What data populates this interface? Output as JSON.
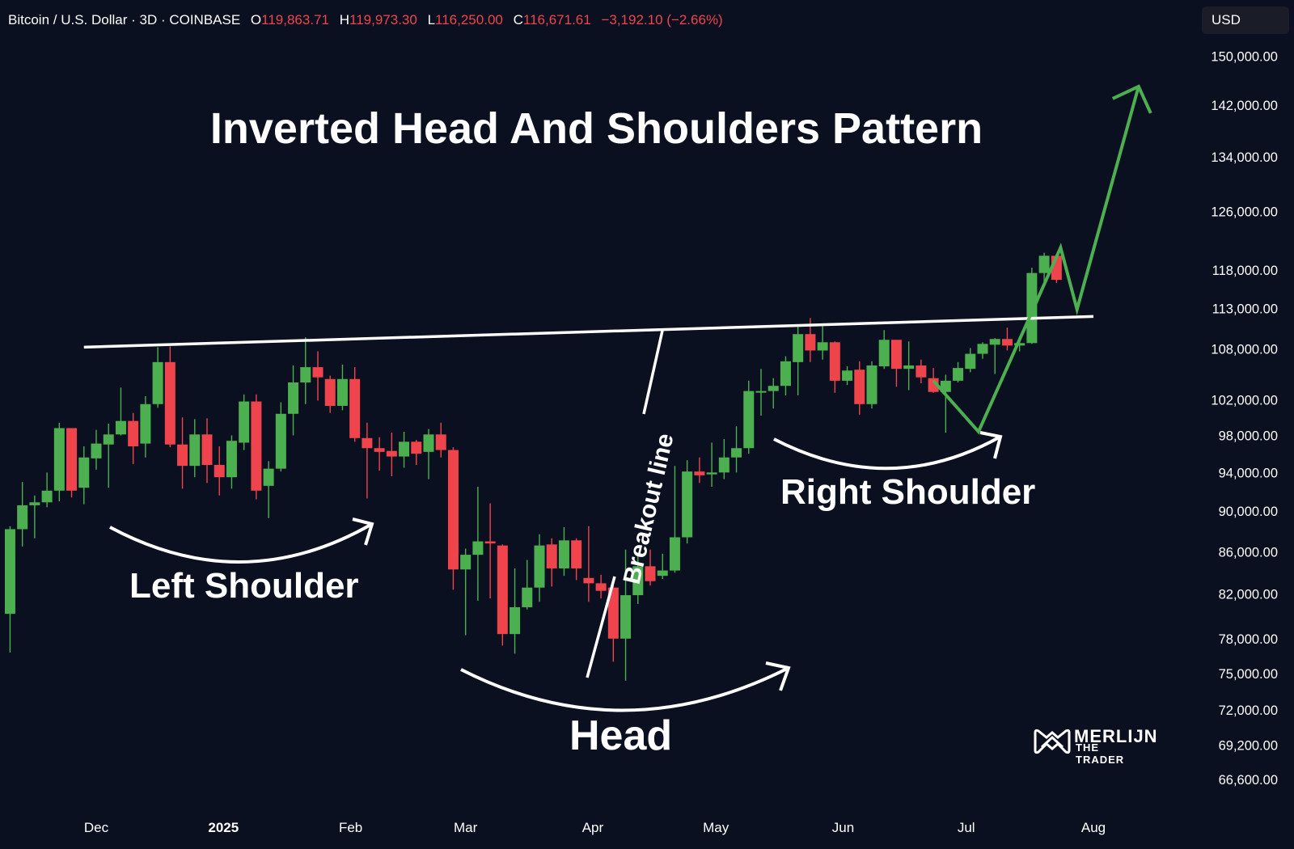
{
  "header": {
    "symbol": "Bitcoin / U.S. Dollar · 3D · COINBASE",
    "open_label": "O",
    "open": "119,863.71",
    "high_label": "H",
    "high": "119,973.30",
    "low_label": "L",
    "low": "116,250.00",
    "close_label": "C",
    "close": "116,671.61",
    "change": "−3,192.10 (−2.66%)"
  },
  "currency_button": "USD",
  "annotations": {
    "left_shoulder": "Left Shoulder",
    "head": "Head",
    "right_shoulder": "Right Shoulder",
    "breakout_line": "Breakout line"
  },
  "logo": {
    "line1": "MERLIJN",
    "line2": "THE TRADER"
  },
  "colors": {
    "background": "#0b1020",
    "up": "#4caf50",
    "down": "#f0444d",
    "projection": "#4caf50",
    "text": "#ffffff"
  },
  "chart_data": {
    "type": "candlestick",
    "title": "Inverted Head And Shoulders Pattern",
    "timeframe": "3D",
    "y_scale": "log",
    "y_ticks": [
      "150,000.00",
      "142,000.00",
      "134,000.00",
      "126,000.00",
      "118,000.00",
      "113,000.00",
      "108,000.00",
      "102,000.00",
      "98,000.00",
      "94,000.00",
      "90,000.00",
      "86,000.00",
      "82,000.00",
      "78,000.00",
      "75,000.00",
      "72,000.00",
      "69,200.00",
      "66,600.00"
    ],
    "x_ticks": [
      {
        "label": "Dec",
        "bold": false,
        "date": "2024-12-01"
      },
      {
        "label": "2025",
        "bold": true,
        "date": "2025-01-01"
      },
      {
        "label": "Feb",
        "bold": false,
        "date": "2025-02-01"
      },
      {
        "label": "Mar",
        "bold": false,
        "date": "2025-03-01"
      },
      {
        "label": "Apr",
        "bold": false,
        "date": "2025-04-01"
      },
      {
        "label": "May",
        "bold": false,
        "date": "2025-05-01"
      },
      {
        "label": "Jun",
        "bold": false,
        "date": "2025-06-01"
      },
      {
        "label": "Jul",
        "bold": false,
        "date": "2025-07-01"
      },
      {
        "label": "Aug",
        "bold": false,
        "date": "2025-08-01"
      }
    ],
    "candles": [
      {
        "date": "2024-11-10",
        "o": 80200,
        "h": 88500,
        "l": 76800,
        "c": 88200
      },
      {
        "date": "2024-11-13",
        "o": 88200,
        "h": 93000,
        "l": 86500,
        "c": 90600
      },
      {
        "date": "2024-11-16",
        "o": 90600,
        "h": 91600,
        "l": 87300,
        "c": 90900
      },
      {
        "date": "2024-11-19",
        "o": 90900,
        "h": 94000,
        "l": 90400,
        "c": 92100
      },
      {
        "date": "2024-11-22",
        "o": 92100,
        "h": 99400,
        "l": 91000,
        "c": 98800
      },
      {
        "date": "2024-11-25",
        "o": 98800,
        "h": 98700,
        "l": 91400,
        "c": 92100
      },
      {
        "date": "2024-11-28",
        "o": 92400,
        "h": 96800,
        "l": 90700,
        "c": 95600
      },
      {
        "date": "2024-12-01",
        "o": 95500,
        "h": 98600,
        "l": 94300,
        "c": 97100
      },
      {
        "date": "2024-12-04",
        "o": 97000,
        "h": 99300,
        "l": 92400,
        "c": 98100
      },
      {
        "date": "2024-12-07",
        "o": 98100,
        "h": 103400,
        "l": 98000,
        "c": 99600
      },
      {
        "date": "2024-12-10",
        "o": 99600,
        "h": 100500,
        "l": 94900,
        "c": 96800
      },
      {
        "date": "2024-12-13",
        "o": 97100,
        "h": 102400,
        "l": 95600,
        "c": 101500
      },
      {
        "date": "2024-12-16",
        "o": 101500,
        "h": 108200,
        "l": 101100,
        "c": 106400
      },
      {
        "date": "2024-12-19",
        "o": 106400,
        "h": 108300,
        "l": 96700,
        "c": 97000
      },
      {
        "date": "2024-12-22",
        "o": 97000,
        "h": 100000,
        "l": 92300,
        "c": 94700
      },
      {
        "date": "2024-12-25",
        "o": 94700,
        "h": 99800,
        "l": 93500,
        "c": 98100
      },
      {
        "date": "2024-12-28",
        "o": 98100,
        "h": 99900,
        "l": 92900,
        "c": 94800
      },
      {
        "date": "2024-12-31",
        "o": 94800,
        "h": 96800,
        "l": 91600,
        "c": 93500
      },
      {
        "date": "2025-01-03",
        "o": 93500,
        "h": 98000,
        "l": 92300,
        "c": 97400
      },
      {
        "date": "2025-01-06",
        "o": 97200,
        "h": 102600,
        "l": 96400,
        "c": 101800
      },
      {
        "date": "2025-01-09",
        "o": 101800,
        "h": 102600,
        "l": 91200,
        "c": 92100
      },
      {
        "date": "2025-01-12",
        "o": 92600,
        "h": 95200,
        "l": 89300,
        "c": 94400
      },
      {
        "date": "2025-01-15",
        "o": 94400,
        "h": 101700,
        "l": 94100,
        "c": 100400
      },
      {
        "date": "2025-01-18",
        "o": 100400,
        "h": 106000,
        "l": 98000,
        "c": 104000
      },
      {
        "date": "2025-01-21",
        "o": 104000,
        "h": 109400,
        "l": 101500,
        "c": 105800
      },
      {
        "date": "2025-01-24",
        "o": 105800,
        "h": 107700,
        "l": 101900,
        "c": 104600
      },
      {
        "date": "2025-01-27",
        "o": 104400,
        "h": 104800,
        "l": 100500,
        "c": 101300
      },
      {
        "date": "2025-01-30",
        "o": 101300,
        "h": 106100,
        "l": 100800,
        "c": 104400
      },
      {
        "date": "2025-02-02",
        "o": 104400,
        "h": 105800,
        "l": 97300,
        "c": 97700
      },
      {
        "date": "2025-02-05",
        "o": 97700,
        "h": 99400,
        "l": 91300,
        "c": 96600
      },
      {
        "date": "2025-02-08",
        "o": 96600,
        "h": 97800,
        "l": 94200,
        "c": 96200
      },
      {
        "date": "2025-02-11",
        "o": 96300,
        "h": 98300,
        "l": 93600,
        "c": 95700
      },
      {
        "date": "2025-02-14",
        "o": 95700,
        "h": 98400,
        "l": 94500,
        "c": 97300
      },
      {
        "date": "2025-02-17",
        "o": 97300,
        "h": 97500,
        "l": 94800,
        "c": 96000
      },
      {
        "date": "2025-02-20",
        "o": 96200,
        "h": 98700,
        "l": 93300,
        "c": 98100
      },
      {
        "date": "2025-02-23",
        "o": 98100,
        "h": 99400,
        "l": 95600,
        "c": 96400
      },
      {
        "date": "2025-02-26",
        "o": 96400,
        "h": 96700,
        "l": 82400,
        "c": 84300
      },
      {
        "date": "2025-03-01",
        "o": 84300,
        "h": 86300,
        "l": 78300,
        "c": 85700
      },
      {
        "date": "2025-03-04",
        "o": 85700,
        "h": 92500,
        "l": 81400,
        "c": 87000
      },
      {
        "date": "2025-03-07",
        "o": 87000,
        "h": 90800,
        "l": 81600,
        "c": 86800
      },
      {
        "date": "2025-03-10",
        "o": 86600,
        "h": 86700,
        "l": 77400,
        "c": 78400
      },
      {
        "date": "2025-03-13",
        "o": 78400,
        "h": 84400,
        "l": 76700,
        "c": 80800
      },
      {
        "date": "2025-03-16",
        "o": 80800,
        "h": 85200,
        "l": 80600,
        "c": 82600
      },
      {
        "date": "2025-03-19",
        "o": 82600,
        "h": 87700,
        "l": 81300,
        "c": 86600
      },
      {
        "date": "2025-03-22",
        "o": 86700,
        "h": 87300,
        "l": 82700,
        "c": 84400
      },
      {
        "date": "2025-03-25",
        "o": 84400,
        "h": 88400,
        "l": 83700,
        "c": 87100
      },
      {
        "date": "2025-03-28",
        "o": 87100,
        "h": 87300,
        "l": 83300,
        "c": 84400
      },
      {
        "date": "2025-03-31",
        "o": 83500,
        "h": 88500,
        "l": 81300,
        "c": 83000
      },
      {
        "date": "2025-04-03",
        "o": 83000,
        "h": 83800,
        "l": 81600,
        "c": 82300
      },
      {
        "date": "2025-04-06",
        "o": 82600,
        "h": 83400,
        "l": 76000,
        "c": 78000
      },
      {
        "date": "2025-04-09",
        "o": 78000,
        "h": 86200,
        "l": 74400,
        "c": 81900
      },
      {
        "date": "2025-04-12",
        "o": 81900,
        "h": 85900,
        "l": 81100,
        "c": 84600
      },
      {
        "date": "2025-04-15",
        "o": 84600,
        "h": 86200,
        "l": 82800,
        "c": 83200
      },
      {
        "date": "2025-04-18",
        "o": 83700,
        "h": 85800,
        "l": 83400,
        "c": 84200
      },
      {
        "date": "2025-04-21",
        "o": 84200,
        "h": 94700,
        "l": 84000,
        "c": 87400
      },
      {
        "date": "2025-04-24",
        "o": 87400,
        "h": 95300,
        "l": 86800,
        "c": 94100
      },
      {
        "date": "2025-04-27",
        "o": 94100,
        "h": 95600,
        "l": 92900,
        "c": 93700
      },
      {
        "date": "2025-04-30",
        "o": 93800,
        "h": 97200,
        "l": 92500,
        "c": 94000
      },
      {
        "date": "2025-05-03",
        "o": 94000,
        "h": 97600,
        "l": 93300,
        "c": 95600
      },
      {
        "date": "2025-05-06",
        "o": 95600,
        "h": 99000,
        "l": 94000,
        "c": 96600
      },
      {
        "date": "2025-05-09",
        "o": 96600,
        "h": 104200,
        "l": 96000,
        "c": 103000
      },
      {
        "date": "2025-05-12",
        "o": 103000,
        "h": 105600,
        "l": 100200,
        "c": 103000
      },
      {
        "date": "2025-05-15",
        "o": 103000,
        "h": 104500,
        "l": 101000,
        "c": 103600
      },
      {
        "date": "2025-05-18",
        "o": 103600,
        "h": 107100,
        "l": 102500,
        "c": 106500
      },
      {
        "date": "2025-05-21",
        "o": 106400,
        "h": 110800,
        "l": 102500,
        "c": 109800
      },
      {
        "date": "2025-05-24",
        "o": 109800,
        "h": 111800,
        "l": 106400,
        "c": 107800
      },
      {
        "date": "2025-05-27",
        "o": 107800,
        "h": 110800,
        "l": 106700,
        "c": 108800
      },
      {
        "date": "2025-05-30",
        "o": 108800,
        "h": 108900,
        "l": 102800,
        "c": 104200
      },
      {
        "date": "2025-06-02",
        "o": 104200,
        "h": 105900,
        "l": 103700,
        "c": 105400
      },
      {
        "date": "2025-06-05",
        "o": 105500,
        "h": 106500,
        "l": 100300,
        "c": 101500
      },
      {
        "date": "2025-06-08",
        "o": 101500,
        "h": 106500,
        "l": 101000,
        "c": 106000
      },
      {
        "date": "2025-06-11",
        "o": 105900,
        "h": 110300,
        "l": 105600,
        "c": 109100
      },
      {
        "date": "2025-06-14",
        "o": 109100,
        "h": 109100,
        "l": 103500,
        "c": 105600
      },
      {
        "date": "2025-06-17",
        "o": 105600,
        "h": 108900,
        "l": 103100,
        "c": 106000
      },
      {
        "date": "2025-06-20",
        "o": 106000,
        "h": 106700,
        "l": 103900,
        "c": 104600
      },
      {
        "date": "2025-06-23",
        "o": 104500,
        "h": 105700,
        "l": 102800,
        "c": 102900
      },
      {
        "date": "2025-06-26",
        "o": 102900,
        "h": 104900,
        "l": 98300,
        "c": 104200
      },
      {
        "date": "2025-06-29",
        "o": 104200,
        "h": 106400,
        "l": 104000,
        "c": 105700
      },
      {
        "date": "2025-07-02",
        "o": 105600,
        "h": 108100,
        "l": 105200,
        "c": 107400
      },
      {
        "date": "2025-07-05",
        "o": 107400,
        "h": 108800,
        "l": 106800,
        "c": 108600
      },
      {
        "date": "2025-07-08",
        "o": 108500,
        "h": 109300,
        "l": 105000,
        "c": 109200
      },
      {
        "date": "2025-07-11",
        "o": 109200,
        "h": 110600,
        "l": 107800,
        "c": 108400
      },
      {
        "date": "2025-07-14",
        "o": 108400,
        "h": 109100,
        "l": 107700,
        "c": 108700
      },
      {
        "date": "2025-07-17",
        "o": 108700,
        "h": 118300,
        "l": 108600,
        "c": 117600
      },
      {
        "date": "2025-07-20",
        "o": 117600,
        "h": 120300,
        "l": 115800,
        "c": 119900
      },
      {
        "date": "2025-07-23",
        "o": 119900,
        "h": 120000,
        "l": 116300,
        "c": 116700
      }
    ],
    "neckline": [
      {
        "date": "2024-11-28",
        "price": 108200
      },
      {
        "date": "2025-08-01",
        "price": 112000
      }
    ],
    "projection_path": [
      {
        "date": "2025-06-23",
        "price": 104200
      },
      {
        "date": "2025-07-04",
        "price": 98400
      },
      {
        "date": "2025-07-24",
        "price": 121000
      },
      {
        "date": "2025-07-28",
        "price": 112900
      },
      {
        "date": "2025-08-12",
        "price": 145000
      }
    ]
  }
}
